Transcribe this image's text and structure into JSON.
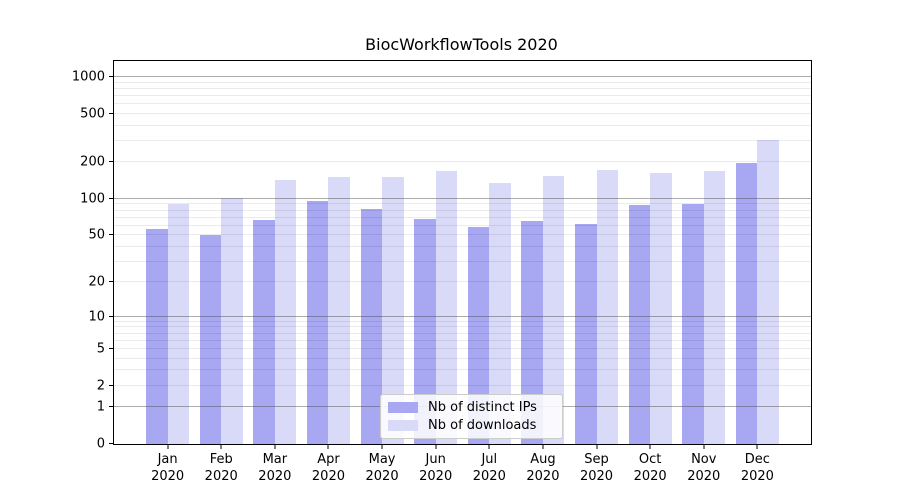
{
  "chart_data": {
    "type": "bar",
    "title": "BiocWorkflowTools 2020",
    "categories": [
      "Jan",
      "Feb",
      "Mar",
      "Apr",
      "May",
      "Jun",
      "Jul",
      "Aug",
      "Sep",
      "Oct",
      "Nov",
      "Dec"
    ],
    "year_label": "2020",
    "series": [
      {
        "name": "Nb of distinct IPs",
        "color": "#a7a7f2",
        "values": [
          56,
          50,
          67,
          96,
          83,
          68,
          58,
          66,
          62,
          89,
          91,
          198
        ]
      },
      {
        "name": "Nb of downloads",
        "color": "#d9d9f8",
        "values": [
          90,
          102,
          142,
          151,
          150,
          168,
          134,
          155,
          173,
          163,
          169,
          305
        ]
      }
    ],
    "xlabel": "",
    "ylabel": "",
    "y_ticks": [
      0,
      1,
      2,
      5,
      10,
      20,
      50,
      100,
      200,
      500,
      1000
    ],
    "ylim": [
      0,
      1350
    ],
    "yscale": "log1p",
    "grid": true,
    "legend_position": "lower-center"
  }
}
